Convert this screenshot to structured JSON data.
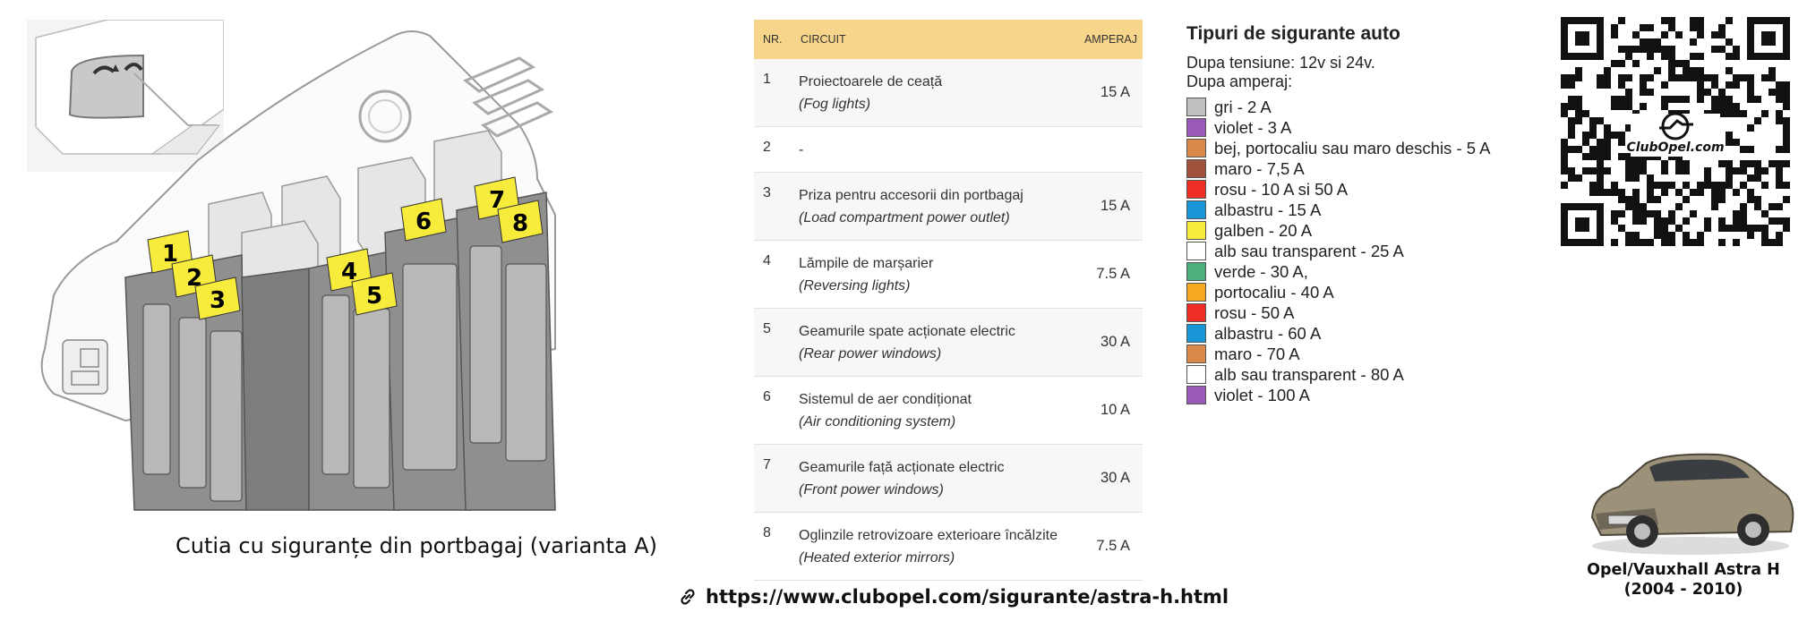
{
  "diagram": {
    "caption": "Cutia cu siguranțe din portbagaj (varianta A)",
    "fuse_labels": [
      "1",
      "2",
      "3",
      "4",
      "5",
      "6",
      "7",
      "8"
    ]
  },
  "table": {
    "headers": {
      "nr": "NR.",
      "circuit": "CIRCUIT",
      "amp": "AMPERAJ"
    },
    "rows": [
      {
        "nr": "1",
        "ro": "Proiectoarele de ceață",
        "en": "(Fog lights)",
        "amp": "15 A"
      },
      {
        "nr": "2",
        "ro": "-",
        "en": "",
        "amp": ""
      },
      {
        "nr": "3",
        "ro": "Priza pentru accesorii din portbagaj",
        "en": "(Load compartment power outlet)",
        "amp": "15 A"
      },
      {
        "nr": "4",
        "ro": "Lămpile de marșarier",
        "en": "(Reversing lights)",
        "amp": "7.5 A"
      },
      {
        "nr": "5",
        "ro": "Geamurile spate acționate electric",
        "en": "(Rear power windows)",
        "amp": "30 A"
      },
      {
        "nr": "6",
        "ro": "Sistemul de aer condiționat",
        "en": "(Air conditioning system)",
        "amp": "10 A"
      },
      {
        "nr": "7",
        "ro": "Geamurile față acționate electric",
        "en": "(Front power windows)",
        "amp": "30 A"
      },
      {
        "nr": "8",
        "ro": "Oglinzile retrovizoare exterioare încălzite",
        "en": "(Heated exterior mirrors)",
        "amp": "7.5 A"
      }
    ]
  },
  "legend": {
    "title": "Tipuri de sigurante auto",
    "line1": "Dupa tensiune: 12v si 24v.",
    "line2": "Dupa amperaj:",
    "items": [
      {
        "color": "#c0c0c0",
        "label": "gri - 2 A"
      },
      {
        "color": "#9b59b6",
        "label": "violet - 3 A"
      },
      {
        "color": "#d98a4a",
        "label": "bej, portocaliu sau maro deschis - 5 A"
      },
      {
        "color": "#a0523c",
        "label": "maro - 7,5 A"
      },
      {
        "color": "#ee2d24",
        "label": "rosu - 10 A si 50 A"
      },
      {
        "color": "#1795d4",
        "label": "albastru - 15 A"
      },
      {
        "color": "#f7ec3b",
        "label": "galben - 20 A"
      },
      {
        "color": "#ffffff",
        "label": "alb sau transparent - 25 A"
      },
      {
        "color": "#4caf7d",
        "label": "verde - 30 A,"
      },
      {
        "color": "#f7a823",
        "label": "portocaliu - 40 A"
      },
      {
        "color": "#ee2d24",
        "label": "rosu - 50 A"
      },
      {
        "color": "#1795d4",
        "label": "albastru - 60 A"
      },
      {
        "color": "#d98a4a",
        "label": "maro - 70 A"
      },
      {
        "color": "#ffffff",
        "label": "alb sau transparent - 80 A"
      },
      {
        "color": "#9b59b6",
        "label": "violet - 100 A"
      }
    ]
  },
  "qr": {
    "text": "ClubOpel.com"
  },
  "car": {
    "title": "Opel/Vauxhall Astra H",
    "years": "(2004 - 2010)"
  },
  "footer": {
    "url": "https://www.clubopel.com/sigurante/astra-h.html"
  },
  "icons": {
    "link": "link-icon",
    "logo": "opel-logo-icon"
  }
}
